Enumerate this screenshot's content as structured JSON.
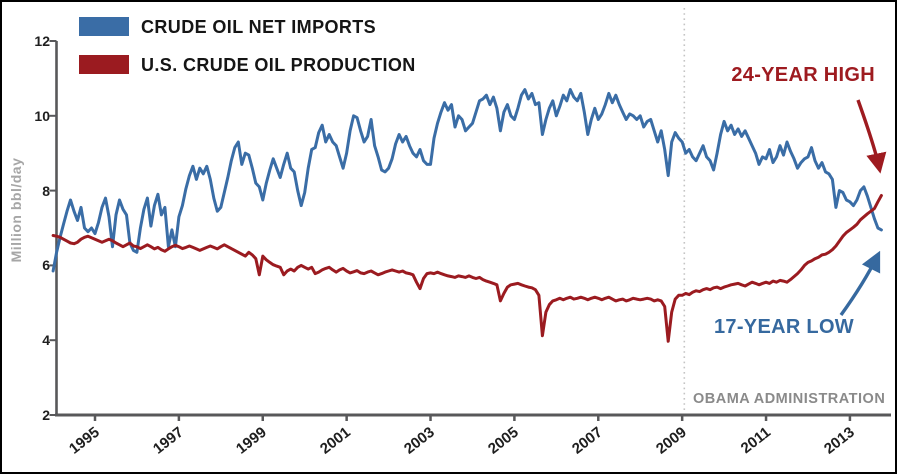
{
  "legend": {
    "items": [
      {
        "label": "CRUDE OIL NET IMPORTS",
        "color": "#3a6da6"
      },
      {
        "label": "U.S. CRUDE OIL PRODUCTION",
        "color": "#9b1b20"
      }
    ]
  },
  "annotations": {
    "high": {
      "text": "24-YEAR HIGH",
      "color": "#9e1b20"
    },
    "low": {
      "text": "17-YEAR LOW",
      "color": "#36699f"
    },
    "obama": {
      "text": "OBAMA ADMINISTRATION",
      "color": "#8a8a8a"
    }
  },
  "axes": {
    "ylabel": "Million bbl/day",
    "yticks": [
      2,
      4,
      6,
      8,
      10,
      12
    ],
    "xticks": [
      1995,
      1997,
      1999,
      2001,
      2003,
      2005,
      2007,
      2009,
      2011,
      2013
    ]
  },
  "chart_data": {
    "type": "line",
    "title": "",
    "xlabel": "",
    "ylabel": "Million bbl/day",
    "ylim": [
      2,
      12
    ],
    "x_range_years": [
      1994,
      2014
    ],
    "x_unit": "monthly, starting January of start_year",
    "grid": false,
    "legend_position": "top-left",
    "event_line": {
      "year": 2009.05,
      "label": "OBAMA ADMINISTRATION",
      "style": "dotted",
      "color": "#c4c4c4"
    },
    "series": [
      {
        "name": "CRUDE OIL NET IMPORTS",
        "color": "#3a6da6",
        "start_year": 1994,
        "values": [
          5.85,
          6.35,
          6.75,
          7.1,
          7.45,
          7.75,
          7.45,
          7.2,
          7.55,
          7.0,
          6.9,
          7.0,
          6.85,
          7.15,
          7.55,
          7.8,
          7.3,
          6.5,
          7.35,
          7.75,
          7.5,
          7.35,
          6.6,
          6.4,
          6.35,
          7.0,
          7.5,
          7.8,
          7.05,
          7.6,
          7.9,
          7.35,
          7.55,
          6.5,
          6.95,
          6.5,
          7.3,
          7.6,
          8.05,
          8.4,
          8.65,
          8.3,
          8.6,
          8.45,
          8.65,
          8.3,
          7.8,
          7.45,
          7.55,
          7.95,
          8.35,
          8.8,
          9.15,
          9.3,
          8.7,
          9.0,
          8.95,
          8.6,
          8.2,
          8.1,
          7.75,
          8.2,
          8.55,
          8.85,
          8.6,
          8.35,
          8.7,
          9.0,
          8.6,
          8.5,
          8.0,
          7.6,
          7.95,
          8.6,
          9.1,
          9.15,
          9.55,
          9.75,
          9.3,
          9.5,
          9.3,
          9.2,
          8.9,
          8.6,
          9.0,
          9.6,
          10.0,
          9.95,
          9.6,
          9.3,
          9.45,
          9.9,
          9.2,
          8.9,
          8.55,
          8.5,
          8.6,
          8.85,
          9.25,
          9.5,
          9.3,
          9.45,
          9.2,
          9.0,
          8.9,
          9.1,
          8.8,
          8.7,
          8.7,
          9.4,
          9.8,
          10.1,
          10.35,
          10.15,
          10.3,
          9.7,
          10.0,
          9.9,
          9.6,
          9.7,
          9.8,
          10.1,
          10.4,
          10.45,
          10.55,
          10.3,
          10.5,
          10.2,
          9.6,
          10.1,
          10.3,
          10.0,
          9.9,
          10.2,
          10.55,
          10.7,
          10.45,
          10.6,
          10.3,
          10.35,
          9.5,
          9.9,
          10.2,
          10.4,
          10.0,
          10.25,
          10.55,
          10.4,
          10.7,
          10.5,
          10.4,
          10.6,
          10.1,
          9.5,
          9.9,
          10.2,
          9.9,
          10.05,
          10.3,
          10.6,
          10.35,
          10.55,
          10.3,
          10.1,
          9.9,
          10.05,
          10.0,
          9.9,
          10.0,
          9.7,
          9.85,
          9.9,
          9.6,
          9.3,
          9.6,
          9.1,
          8.4,
          9.3,
          9.55,
          9.4,
          9.3,
          9.0,
          9.1,
          8.9,
          8.8,
          9.0,
          9.2,
          8.9,
          8.8,
          8.55,
          9.0,
          9.5,
          9.85,
          9.6,
          9.75,
          9.5,
          9.65,
          9.45,
          9.6,
          9.4,
          9.2,
          9.0,
          8.7,
          8.9,
          8.85,
          9.1,
          8.75,
          8.9,
          9.2,
          8.95,
          9.3,
          9.05,
          8.85,
          8.6,
          8.75,
          8.85,
          8.9,
          9.15,
          8.8,
          8.6,
          8.75,
          8.5,
          8.45,
          8.3,
          7.55,
          8.0,
          7.95,
          7.75,
          7.7,
          7.6,
          7.75,
          8.0,
          8.1,
          7.85,
          7.55,
          7.25,
          7.0,
          6.95
        ],
        "end_note": "17-YEAR LOW"
      },
      {
        "name": "U.S. CRUDE OIL PRODUCTION",
        "color": "#9b1b20",
        "start_year": 1994,
        "values": [
          6.8,
          6.78,
          6.75,
          6.7,
          6.65,
          6.6,
          6.58,
          6.62,
          6.7,
          6.75,
          6.78,
          6.74,
          6.7,
          6.66,
          6.62,
          6.66,
          6.7,
          6.66,
          6.6,
          6.55,
          6.5,
          6.55,
          6.6,
          6.52,
          6.5,
          6.45,
          6.5,
          6.55,
          6.5,
          6.44,
          6.48,
          6.42,
          6.38,
          6.44,
          6.5,
          6.54,
          6.5,
          6.45,
          6.48,
          6.52,
          6.48,
          6.44,
          6.4,
          6.44,
          6.48,
          6.52,
          6.48,
          6.44,
          6.5,
          6.55,
          6.5,
          6.45,
          6.4,
          6.35,
          6.3,
          6.25,
          6.35,
          6.28,
          6.18,
          5.75,
          6.25,
          6.15,
          6.08,
          6.02,
          5.98,
          5.95,
          5.75,
          5.85,
          5.9,
          5.85,
          5.95,
          6.0,
          5.95,
          5.9,
          5.95,
          5.78,
          5.82,
          5.88,
          5.92,
          5.95,
          5.88,
          5.82,
          5.88,
          5.92,
          5.85,
          5.8,
          5.83,
          5.86,
          5.8,
          5.78,
          5.82,
          5.85,
          5.8,
          5.75,
          5.78,
          5.82,
          5.85,
          5.88,
          5.85,
          5.82,
          5.85,
          5.8,
          5.78,
          5.75,
          5.55,
          5.38,
          5.65,
          5.78,
          5.8,
          5.78,
          5.82,
          5.78,
          5.75,
          5.72,
          5.7,
          5.68,
          5.72,
          5.7,
          5.68,
          5.72,
          5.68,
          5.65,
          5.68,
          5.62,
          5.58,
          5.55,
          5.52,
          5.48,
          5.05,
          5.25,
          5.42,
          5.48,
          5.5,
          5.52,
          5.48,
          5.45,
          5.42,
          5.4,
          5.35,
          5.2,
          4.12,
          4.75,
          4.95,
          5.05,
          5.08,
          5.12,
          5.08,
          5.12,
          5.15,
          5.1,
          5.12,
          5.15,
          5.12,
          5.08,
          5.12,
          5.15,
          5.12,
          5.08,
          5.12,
          5.15,
          5.1,
          5.05,
          5.08,
          5.1,
          5.05,
          5.08,
          5.12,
          5.1,
          5.08,
          5.1,
          5.12,
          5.1,
          5.05,
          5.08,
          5.05,
          4.9,
          3.97,
          4.75,
          5.1,
          5.2,
          5.2,
          5.25,
          5.22,
          5.28,
          5.32,
          5.3,
          5.35,
          5.38,
          5.35,
          5.4,
          5.42,
          5.38,
          5.42,
          5.45,
          5.48,
          5.5,
          5.52,
          5.48,
          5.45,
          5.5,
          5.55,
          5.52,
          5.48,
          5.52,
          5.55,
          5.52,
          5.58,
          5.55,
          5.6,
          5.58,
          5.55,
          5.62,
          5.7,
          5.78,
          5.88,
          6.0,
          6.08,
          6.12,
          6.18,
          6.22,
          6.28,
          6.3,
          6.35,
          6.42,
          6.52,
          6.65,
          6.78,
          6.88,
          6.95,
          7.02,
          7.1,
          7.22,
          7.3,
          7.38,
          7.45,
          7.52,
          7.7,
          7.87
        ],
        "end_note": "24-YEAR HIGH"
      }
    ]
  }
}
